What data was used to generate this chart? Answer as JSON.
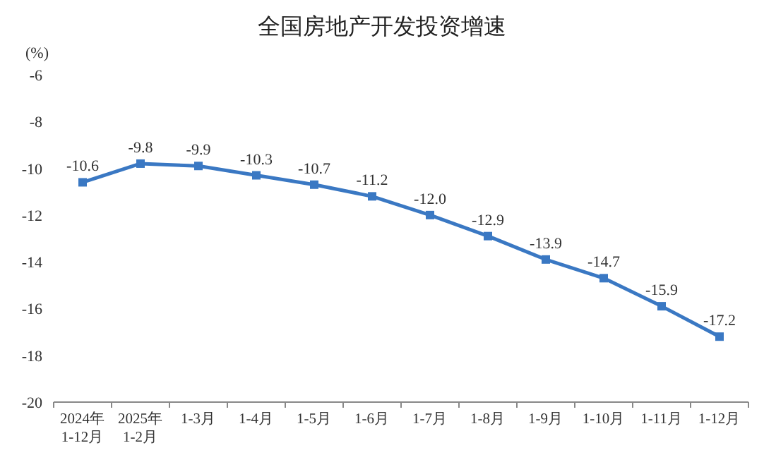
{
  "chart_data": {
    "type": "line",
    "title": "全国房地产开发投资增速",
    "ylabel": "(%)",
    "categories": [
      "2024年\n1-12月",
      "2025年\n1-2月",
      "1-3月",
      "1-4月",
      "1-5月",
      "1-6月",
      "1-7月",
      "1-8月",
      "1-9月",
      "1-10月",
      "1-11月",
      "1-12月"
    ],
    "values": [
      -10.6,
      -9.8,
      -9.9,
      -10.3,
      -10.7,
      -11.2,
      -12.0,
      -12.9,
      -13.9,
      -14.7,
      -15.9,
      -17.2
    ],
    "value_labels": [
      "-10.6",
      "-9.8",
      "-9.9",
      "-10.3",
      "-10.7",
      "-11.2",
      "-12.0",
      "-12.9",
      "-13.9",
      "-14.7",
      "-15.9",
      "-17.2"
    ],
    "color": "#3a78c3",
    "ylim": [
      -20,
      -6
    ],
    "yticks": [
      -20,
      -18,
      -16,
      -14,
      -12,
      -10,
      -8,
      -6
    ],
    "marker": "square",
    "line_style": "solid",
    "grid": false
  }
}
